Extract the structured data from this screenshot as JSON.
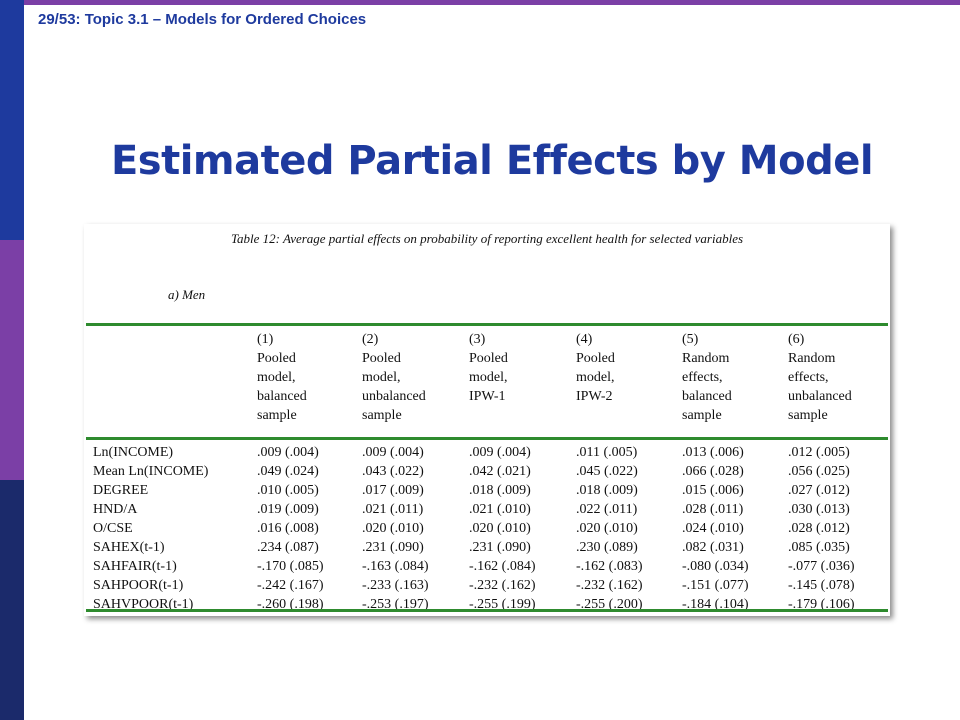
{
  "slide": {
    "header": "29/53: Topic 3.1 – Models for Ordered Choices",
    "title": "Estimated Partial Effects by Model",
    "colors": {
      "blue": "#1e3a9e",
      "purple": "#7b3fa6",
      "navy": "#1b2a6b",
      "green_rule": "#2e8b2e"
    }
  },
  "table": {
    "caption": "Table 12: Average partial effects on probability of reporting excellent health for selected variables",
    "subcaption": "a)  Men",
    "columns": [
      [
        "(1)",
        "Pooled",
        "model,",
        "balanced",
        "sample"
      ],
      [
        "(2)",
        "Pooled",
        "model,",
        "unbalanced",
        "sample"
      ],
      [
        "(3)",
        "Pooled",
        "model,",
        "IPW-1"
      ],
      [
        "(4)",
        "Pooled",
        "model,",
        "IPW-2"
      ],
      [
        "(5)",
        "Random",
        "effects,",
        "balanced",
        "sample"
      ],
      [
        "(6)",
        "Random",
        "effects,",
        "unbalanced",
        "sample"
      ]
    ],
    "rows": [
      {
        "label": "Ln(INCOME)",
        "values": [
          ".009 (.004)",
          ".009 (.004)",
          ".009 (.004)",
          ".011 (.005)",
          ".013 (.006)",
          ".012 (.005)"
        ]
      },
      {
        "label": "Mean Ln(INCOME)",
        "values": [
          ".049 (.024)",
          ".043 (.022)",
          ".042 (.021)",
          ".045 (.022)",
          ".066 (.028)",
          ".056 (.025)"
        ]
      },
      {
        "label": "DEGREE",
        "values": [
          ".010 (.005)",
          ".017 (.009)",
          ".018 (.009)",
          ".018 (.009)",
          ".015 (.006)",
          ".027 (.012)"
        ]
      },
      {
        "label": "HND/A",
        "values": [
          ".019 (.009)",
          ".021 (.011)",
          ".021 (.010)",
          ".022 (.011)",
          ".028 (.011)",
          ".030 (.013)"
        ]
      },
      {
        "label": "O/CSE",
        "values": [
          ".016 (.008)",
          ".020 (.010)",
          ".020 (.010)",
          ".020 (.010)",
          ".024 (.010)",
          ".028 (.012)"
        ]
      },
      {
        "label": "SAHEX(t-1)",
        "values": [
          ".234 (.087)",
          ".231 (.090)",
          ".231 (.090)",
          ".230 (.089)",
          ".082 (.031)",
          ".085 (.035)"
        ]
      },
      {
        "label": "SAHFAIR(t-1)",
        "values": [
          "-.170 (.085)",
          "-.163 (.084)",
          "-.162 (.084)",
          "-.162 (.083)",
          "-.080 (.034)",
          "-.077 (.036)"
        ]
      },
      {
        "label": "SAHPOOR(t-1)",
        "values": [
          "-.242 (.167)",
          "-.233 (.163)",
          "-.232 (.162)",
          "-.232 (.162)",
          "-.151 (.077)",
          "-.145 (.078)"
        ]
      },
      {
        "label": "SAHVPOOR(t-1)",
        "values": [
          "-.260 (.198)",
          "-.253 (.197)",
          "-.255 (.199)",
          "-.255 (.200)",
          "-.184 (.104)",
          "-.179 (.106)"
        ]
      }
    ]
  }
}
